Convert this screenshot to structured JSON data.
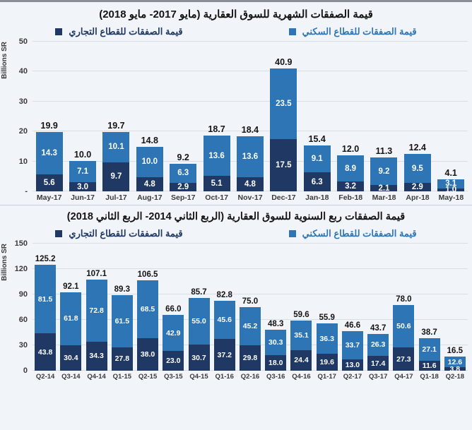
{
  "colors": {
    "residential": "#2e75b6",
    "commercial": "#1f3864",
    "gridline": "#d9dee5",
    "background": "#f1f4f8"
  },
  "chart_data": [
    {
      "type": "bar",
      "stacked": true,
      "title": "قيمة الصفقات الشهرية للسوق العقارية (مايو 2017- مايو 2018)",
      "ylabel": "Billions SR",
      "xlabel": "",
      "ylim": [
        0,
        50
      ],
      "y_ticks": [
        "50",
        "40",
        "30",
        "20",
        "10",
        "-"
      ],
      "grid": true,
      "legend_position": "top",
      "categories": [
        "May-17",
        "Jun-17",
        "Jul-17",
        "Aug-17",
        "Sep-17",
        "Oct-17",
        "Nov-17",
        "Dec-17",
        "Jan-18",
        "Feb-18",
        "Mar-18",
        "Apr-18",
        "May-18"
      ],
      "series": [
        {
          "name": "قيمة الصفقات للقطاع السكني",
          "key": "residential",
          "color": "#2e75b6",
          "values": [
            14.3,
            7.1,
            10.1,
            10.0,
            6.3,
            13.6,
            13.6,
            23.5,
            9.1,
            8.9,
            9.2,
            9.5,
            3.1
          ]
        },
        {
          "name": "قيمة الصفقات للقطاع التجاري",
          "key": "commercial",
          "color": "#1f3864",
          "values": [
            5.6,
            3.0,
            9.7,
            4.8,
            2.9,
            5.1,
            4.8,
            17.5,
            6.3,
            3.2,
            2.1,
            2.9,
            1.0
          ]
        }
      ],
      "totals": [
        19.9,
        10.0,
        19.7,
        14.8,
        9.2,
        18.7,
        18.4,
        40.9,
        15.4,
        12.0,
        11.3,
        12.4,
        4.1
      ]
    },
    {
      "type": "bar",
      "stacked": true,
      "title": "قيمة الصفقات ربع السنوية للسوق العقارية (الربع الثاني 2014- الربع الثاني 2018)",
      "ylabel": "Billions SR",
      "xlabel": "",
      "ylim": [
        0,
        150
      ],
      "y_ticks": [
        "150",
        "120",
        "90",
        "60",
        "30",
        "0"
      ],
      "grid": true,
      "legend_position": "top",
      "categories": [
        "Q2-14",
        "Q3-14",
        "Q4-14",
        "Q1-15",
        "Q2-15",
        "Q3-15",
        "Q4-15",
        "Q1-16",
        "Q2-16",
        "Q3-16",
        "Q4-16",
        "Q1-17",
        "Q2-17",
        "Q3-17",
        "Q4-17",
        "Q1-18",
        "Q2-18"
      ],
      "series": [
        {
          "name": "قيمة الصفقات للقطاع السكني",
          "key": "residential",
          "color": "#2e75b6",
          "values": [
            81.5,
            61.8,
            72.8,
            61.5,
            68.5,
            42.9,
            55.0,
            45.6,
            45.2,
            30.3,
            35.1,
            36.3,
            33.7,
            26.3,
            50.6,
            27.1,
            12.6
          ]
        },
        {
          "name": "قيمة الصفقات للقطاع التجاري",
          "key": "commercial",
          "color": "#1f3864",
          "values": [
            43.8,
            30.4,
            34.3,
            27.8,
            38.0,
            23.0,
            30.7,
            37.2,
            29.8,
            18.0,
            24.4,
            19.6,
            13.0,
            17.4,
            27.3,
            11.6,
            3.8
          ]
        }
      ],
      "totals": [
        125.2,
        92.1,
        107.1,
        89.3,
        106.5,
        66.0,
        85.7,
        82.8,
        75.0,
        48.3,
        59.6,
        55.9,
        46.6,
        43.7,
        78.0,
        38.7,
        16.5
      ]
    }
  ]
}
